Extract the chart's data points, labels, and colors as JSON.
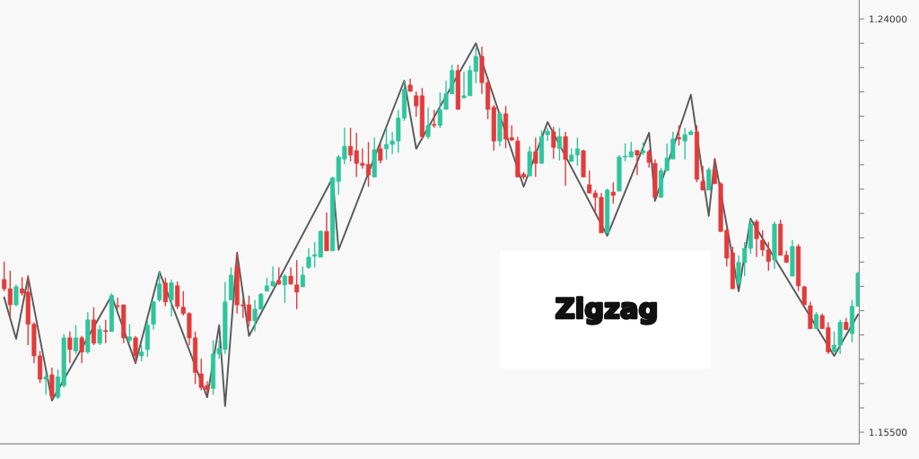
{
  "chart_data": {
    "type": "candlestick",
    "categories": [
      null,
      null,
      null,
      null,
      null,
      null,
      null,
      null,
      null,
      null,
      null,
      null,
      null,
      null,
      null,
      null,
      null,
      null,
      null,
      null,
      null,
      null,
      null,
      null,
      null,
      null,
      null,
      null,
      null,
      null,
      null,
      null,
      null,
      null,
      null,
      null,
      null,
      null,
      null,
      null,
      null,
      null,
      null,
      null,
      null,
      null,
      null,
      null,
      null,
      null,
      null,
      null,
      null,
      null,
      null,
      null,
      null,
      null,
      null,
      null,
      null,
      null,
      null,
      null,
      null,
      null,
      null,
      null,
      null,
      null,
      null,
      null,
      null,
      null,
      null,
      null,
      null,
      null,
      null,
      null,
      null,
      null,
      null,
      null,
      null,
      null,
      null,
      null,
      null,
      null,
      null,
      null,
      null,
      null,
      null,
      null,
      null,
      null,
      null,
      null,
      null,
      null,
      null,
      null,
      null,
      null,
      null,
      null,
      null,
      null,
      null,
      null,
      null,
      null,
      null,
      null,
      null,
      null,
      null,
      null,
      null,
      null,
      null,
      null,
      null,
      null,
      null,
      null,
      null,
      null,
      null,
      null,
      null,
      null,
      null,
      null,
      null,
      null,
      null,
      null,
      null,
      null,
      null,
      null
    ],
    "ohlc": [
      [
        1.1864,
        1.1901,
        1.184,
        1.1845
      ],
      [
        1.1845,
        1.1882,
        1.1788,
        1.1812
      ],
      [
        1.1812,
        1.1853,
        1.1809,
        1.1849
      ],
      [
        1.1845,
        1.1869,
        1.1831,
        1.1836
      ],
      [
        1.1838,
        1.1873,
        1.1729,
        1.1772
      ],
      [
        1.1772,
        1.1776,
        1.1692,
        1.1707
      ],
      [
        1.1707,
        1.1717,
        1.1651,
        1.1659
      ],
      [
        1.1659,
        1.1673,
        1.1627,
        1.1664
      ],
      [
        1.1668,
        1.1683,
        1.1618,
        1.1624
      ],
      [
        1.1622,
        1.1679,
        1.1618,
        1.1664
      ],
      [
        1.1646,
        1.1752,
        1.1642,
        1.1744
      ],
      [
        1.1744,
        1.1757,
        1.1692,
        1.172
      ],
      [
        1.1717,
        1.177,
        1.1711,
        1.1744
      ],
      [
        1.1744,
        1.1748,
        1.1692,
        1.1715
      ],
      [
        1.1715,
        1.1797,
        1.1711,
        1.1781
      ],
      [
        1.1781,
        1.1807,
        1.1729,
        1.1733
      ],
      [
        1.1733,
        1.177,
        1.1729,
        1.1761
      ],
      [
        1.1759,
        1.1781,
        1.1733,
        1.1757
      ],
      [
        1.1757,
        1.1836,
        1.1757,
        1.1831
      ],
      [
        1.181,
        1.1827,
        1.1803,
        1.1809
      ],
      [
        1.1812,
        1.1812,
        1.1733,
        1.1744
      ],
      [
        1.1739,
        1.1772,
        1.1735,
        1.1746
      ],
      [
        1.1744,
        1.1748,
        1.1692,
        1.1707
      ],
      [
        1.1707,
        1.1729,
        1.1696,
        1.1715
      ],
      [
        1.172,
        1.1781,
        1.1705,
        1.177
      ],
      [
        1.1772,
        1.182,
        1.1761,
        1.1818
      ],
      [
        1.1822,
        1.188,
        1.1818,
        1.1855
      ],
      [
        1.1857,
        1.1868,
        1.1809,
        1.1818
      ],
      [
        1.1822,
        1.1864,
        1.1788,
        1.1857
      ],
      [
        1.1851,
        1.186,
        1.1803,
        1.1809
      ],
      [
        1.1807,
        1.184,
        1.179,
        1.1794
      ],
      [
        1.1794,
        1.1797,
        1.1729,
        1.1744
      ],
      [
        1.1744,
        1.1757,
        1.1649,
        1.1673
      ],
      [
        1.167,
        1.1701,
        1.1636,
        1.1642
      ],
      [
        1.1646,
        1.1655,
        1.1627,
        1.1638
      ],
      [
        1.164,
        1.1739,
        1.1627,
        1.1711
      ],
      [
        1.1711,
        1.1739,
        1.1701,
        1.1722
      ],
      [
        1.172,
        1.1859,
        1.1711,
        1.1818
      ],
      [
        1.1822,
        1.1889,
        1.1822,
        1.1873
      ],
      [
        1.1891,
        1.1919,
        1.1794,
        1.1812
      ],
      [
        1.1812,
        1.1825,
        1.1785,
        1.181
      ],
      [
        1.1812,
        1.1831,
        1.1767,
        1.1779
      ],
      [
        1.1779,
        1.1822,
        1.1757,
        1.1803
      ],
      [
        1.1803,
        1.1836,
        1.1803,
        1.1834
      ],
      [
        1.184,
        1.1868,
        1.184,
        1.1851
      ],
      [
        1.1851,
        1.1891,
        1.1849,
        1.186
      ],
      [
        1.1862,
        1.1889,
        1.1853,
        1.1855
      ],
      [
        1.1853,
        1.1875,
        1.1816,
        1.1871
      ],
      [
        1.1871,
        1.1889,
        1.1853,
        1.1855
      ],
      [
        1.1853,
        1.1904,
        1.1803,
        1.1838
      ],
      [
        1.1849,
        1.1891,
        1.1849,
        1.1873
      ],
      [
        1.1889,
        1.1928,
        1.1886,
        1.191
      ],
      [
        1.1912,
        1.1941,
        1.1889,
        1.1915
      ],
      [
        1.191,
        1.1965,
        1.191,
        1.1963
      ],
      [
        1.1963,
        1.2002,
        1.1923,
        1.1923
      ],
      [
        1.1923,
        1.2075,
        1.1923,
        1.2073
      ],
      [
        1.2066,
        1.212,
        1.2039,
        1.2116
      ],
      [
        1.2112,
        1.2176,
        1.2101,
        1.2138
      ],
      [
        1.2138,
        1.2176,
        1.2107,
        1.212
      ],
      [
        1.2129,
        1.2166,
        1.2075,
        1.2103
      ],
      [
        1.2103,
        1.2134,
        1.2092,
        1.2099
      ],
      [
        1.2101,
        1.2147,
        1.2055,
        1.2079
      ],
      [
        1.2075,
        1.2156,
        1.2075,
        1.2131
      ],
      [
        1.2133,
        1.2144,
        1.2103,
        1.2109
      ],
      [
        1.2133,
        1.2176,
        1.2111,
        1.2142
      ],
      [
        1.2142,
        1.2168,
        1.2122,
        1.2149
      ],
      [
        1.2149,
        1.2213,
        1.2125,
        1.2196
      ],
      [
        1.2196,
        1.2273,
        1.219,
        1.2255
      ],
      [
        1.2264,
        1.2277,
        1.2251,
        1.2251
      ],
      [
        1.2242,
        1.2251,
        1.2199,
        1.2221
      ],
      [
        1.2242,
        1.2258,
        1.2153,
        1.2158
      ],
      [
        1.2158,
        1.2218,
        1.2153,
        1.2181
      ],
      [
        1.2183,
        1.2213,
        1.2176,
        1.2181
      ],
      [
        1.2181,
        1.2249,
        1.2176,
        1.2213
      ],
      [
        1.2214,
        1.2273,
        1.2214,
        1.2246
      ],
      [
        1.2246,
        1.2306,
        1.2246,
        1.2294
      ],
      [
        1.2294,
        1.2306,
        1.2214,
        1.2214
      ],
      [
        1.2238,
        1.2292,
        1.2236,
        1.2242
      ],
      [
        1.2242,
        1.2304,
        1.2242,
        1.2294
      ],
      [
        1.2292,
        1.2341,
        1.2268,
        1.2323
      ],
      [
        1.2323,
        1.2343,
        1.2246,
        1.2269
      ],
      [
        1.2269,
        1.2279,
        1.2194,
        1.2214
      ],
      [
        1.2218,
        1.2223,
        1.2129,
        1.2149
      ],
      [
        1.2149,
        1.2209,
        1.2138,
        1.2205
      ],
      [
        1.2205,
        1.2221,
        1.2134,
        1.2153
      ],
      [
        1.2156,
        1.2181,
        1.2149,
        1.2151
      ],
      [
        1.2149,
        1.2158,
        1.2075,
        1.2075
      ],
      [
        1.2081,
        1.2085,
        1.207,
        1.2075
      ],
      [
        1.2077,
        1.2138,
        1.2077,
        1.2127
      ],
      [
        1.2127,
        1.2156,
        1.2075,
        1.2103
      ],
      [
        1.2103,
        1.2171,
        1.2103,
        1.2158
      ],
      [
        1.2162,
        1.2176,
        1.2149,
        1.2169
      ],
      [
        1.2168,
        1.2178,
        1.2112,
        1.2136
      ],
      [
        1.2134,
        1.2176,
        1.2109,
        1.2158
      ],
      [
        1.2158,
        1.2168,
        1.2057,
        1.2111
      ],
      [
        1.2107,
        1.2134,
        1.2107,
        1.212
      ],
      [
        1.212,
        1.2156,
        1.2098,
        1.2133
      ],
      [
        1.2129,
        1.2131,
        1.2075,
        1.2075
      ],
      [
        1.2059,
        1.2088,
        1.2042,
        1.2042
      ],
      [
        1.2042,
        1.2048,
        1.2002,
        1.2033
      ],
      [
        1.2033,
        1.2042,
        1.196,
        1.196
      ],
      [
        1.196,
        1.2051,
        1.196,
        1.2048
      ],
      [
        1.2044,
        1.2064,
        1.202,
        1.2037
      ],
      [
        1.2046,
        1.212,
        1.2046,
        1.2116
      ],
      [
        1.2116,
        1.2144,
        1.2107,
        1.2118
      ],
      [
        1.2116,
        1.2147,
        1.2116,
        1.2127
      ],
      [
        1.2129,
        1.2131,
        1.2079,
        1.212
      ],
      [
        1.2125,
        1.2147,
        1.212,
        1.2129
      ],
      [
        1.2127,
        1.2131,
        1.2094,
        1.2105
      ],
      [
        1.2103,
        1.2111,
        1.2033,
        1.2033
      ],
      [
        1.2033,
        1.2094,
        1.2033,
        1.2088
      ],
      [
        1.2088,
        1.2144,
        1.2088,
        1.2114
      ],
      [
        1.2112,
        1.2168,
        1.2112,
        1.2153
      ],
      [
        1.2156,
        1.2181,
        1.214,
        1.2153
      ],
      [
        1.2149,
        1.2176,
        1.2111,
        1.2162
      ],
      [
        1.2162,
        1.2171,
        1.2162,
        1.2168
      ],
      [
        1.2168,
        1.2181,
        1.2064,
        1.207
      ],
      [
        1.2066,
        1.2098,
        1.2048,
        1.2048
      ],
      [
        1.2048,
        1.2094,
        1.2048,
        1.209
      ],
      [
        1.209,
        1.2112,
        1.2061,
        1.2061
      ],
      [
        1.2061,
        1.2064,
        1.1963,
        1.1963
      ],
      [
        1.1965,
        1.1969,
        1.1891,
        1.1908
      ],
      [
        1.1919,
        1.1932,
        1.1845,
        1.1845
      ],
      [
        1.1855,
        1.1914,
        1.1855,
        1.1899
      ],
      [
        1.1899,
        1.1941,
        1.1871,
        1.1928
      ],
      [
        1.1928,
        1.1987,
        1.1917,
        1.1978
      ],
      [
        1.1983,
        1.1987,
        1.191,
        1.1948
      ],
      [
        1.1945,
        1.1965,
        1.1912,
        1.1925
      ],
      [
        1.1925,
        1.1941,
        1.1882,
        1.1901
      ],
      [
        1.1904,
        1.1983,
        1.1886,
        1.1978
      ],
      [
        1.1978,
        1.1987,
        1.1914,
        1.1914
      ],
      [
        1.1914,
        1.1923,
        1.1899,
        1.1899
      ],
      [
        1.1871,
        1.1945,
        1.1871,
        1.1932
      ],
      [
        1.1932,
        1.1937,
        1.184,
        1.1851
      ],
      [
        1.1849,
        1.1851,
        1.1812,
        1.1812
      ],
      [
        1.181,
        1.1818,
        1.1763,
        1.1763
      ],
      [
        1.1763,
        1.1797,
        1.1763,
        1.1792
      ],
      [
        1.179,
        1.1794,
        1.1763,
        1.1763
      ],
      [
        1.1765,
        1.1776,
        1.1711,
        1.1715
      ],
      [
        1.1715,
        1.1757,
        1.1715,
        1.1729
      ],
      [
        1.1729,
        1.1781,
        1.1711,
        1.1776
      ],
      [
        1.1776,
        1.1785,
        1.1761,
        1.1761
      ],
      [
        1.1753,
        1.1822,
        1.1735,
        1.1809
      ],
      [
        1.1809,
        1.188,
        1.1809,
        1.1877
      ]
    ],
    "colors": [
      "#e23b3b",
      "#e23b3b",
      "#2fc59d",
      "#e23b3b",
      "#e23b3b",
      "#e23b3b",
      "#e23b3b",
      "#2fc59d",
      "#e23b3b",
      "#2fc59d",
      "#2fc59d",
      "#e23b3b",
      "#2fc59d",
      "#e23b3b",
      "#2fc59d",
      "#e23b3b",
      "#2fc59d",
      "#e23b3b",
      "#2fc59d",
      "#e23b3b",
      "#e23b3b",
      "#2fc59d",
      "#e23b3b",
      "#2fc59d",
      "#2fc59d",
      "#2fc59d",
      "#2fc59d",
      "#e23b3b",
      "#2fc59d",
      "#e23b3b",
      "#e23b3b",
      "#e23b3b",
      "#e23b3b",
      "#e23b3b",
      "#e23b3b",
      "#2fc59d",
      "#2fc59d",
      "#2fc59d",
      "#2fc59d",
      "#e23b3b",
      "#e23b3b",
      "#e23b3b",
      "#2fc59d",
      "#2fc59d",
      "#2fc59d",
      "#2fc59d",
      "#e23b3b",
      "#2fc59d",
      "#e23b3b",
      "#e23b3b",
      "#2fc59d",
      "#2fc59d",
      "#2fc59d",
      "#2fc59d",
      "#e23b3b",
      "#2fc59d",
      "#2fc59d",
      "#2fc59d",
      "#e23b3b",
      "#e23b3b",
      "#e23b3b",
      "#e23b3b",
      "#2fc59d",
      "#e23b3b",
      "#2fc59d",
      "#2fc59d",
      "#2fc59d",
      "#2fc59d",
      "#e23b3b",
      "#e23b3b",
      "#e23b3b",
      "#2fc59d",
      "#e23b3b",
      "#2fc59d",
      "#2fc59d",
      "#2fc59d",
      "#e23b3b",
      "#2fc59d",
      "#2fc59d",
      "#2fc59d",
      "#e23b3b",
      "#e23b3b",
      "#e23b3b",
      "#2fc59d",
      "#e23b3b",
      "#e23b3b",
      "#e23b3b",
      "#e23b3b",
      "#2fc59d",
      "#e23b3b",
      "#2fc59d",
      "#2fc59d",
      "#e23b3b",
      "#2fc59d",
      "#e23b3b",
      "#2fc59d",
      "#2fc59d",
      "#e23b3b",
      "#e23b3b",
      "#e23b3b",
      "#e23b3b",
      "#2fc59d",
      "#e23b3b",
      "#2fc59d",
      "#2fc59d",
      "#2fc59d",
      "#e23b3b",
      "#2fc59d",
      "#e23b3b",
      "#e23b3b",
      "#2fc59d",
      "#2fc59d",
      "#2fc59d",
      "#e23b3b",
      "#2fc59d",
      "#2fc59d",
      "#e23b3b",
      "#e23b3b",
      "#2fc59d",
      "#e23b3b",
      "#e23b3b",
      "#e23b3b",
      "#e23b3b",
      "#2fc59d",
      "#2fc59d",
      "#2fc59d",
      "#e23b3b",
      "#e23b3b",
      "#e23b3b",
      "#2fc59d",
      "#e23b3b",
      "#e23b3b",
      "#2fc59d",
      "#e23b3b",
      "#e23b3b",
      "#e23b3b",
      "#2fc59d",
      "#e23b3b",
      "#e23b3b",
      "#2fc59d",
      "#2fc59d",
      "#e23b3b",
      "#2fc59d",
      "#2fc59d"
    ],
    "series": [
      {
        "type": "line",
        "color": "#5a5a5a",
        "values": [
          1.1827,
          null,
          1.1742,
          null,
          1.1869,
          null,
          null,
          null,
          1.1615,
          null,
          null,
          null,
          null,
          null,
          null,
          null,
          null,
          null,
          1.1831,
          null,
          null,
          null,
          1.1692,
          null,
          null,
          null,
          1.188,
          null,
          null,
          null,
          null,
          null,
          null,
          null,
          1.1622,
          null,
          1.177,
          1.1604,
          null,
          1.1919,
          null,
          1.1748,
          null,
          null,
          null,
          null,
          null,
          null,
          null,
          null,
          null,
          null,
          null,
          null,
          null,
          1.2073,
          1.1925,
          null,
          null,
          null,
          null,
          null,
          null,
          null,
          null,
          null,
          null,
          1.2273,
          null,
          1.2133,
          null,
          null,
          null,
          null,
          null,
          null,
          null,
          null,
          null,
          1.235,
          null,
          null,
          null,
          null,
          null,
          null,
          null,
          1.2055,
          null,
          null,
          null,
          1.2188,
          null,
          null,
          null,
          null,
          null,
          null,
          null,
          null,
          null,
          1.1954,
          null,
          null,
          null,
          null,
          null,
          null,
          1.2166,
          1.2026,
          null,
          null,
          null,
          null,
          null,
          1.2244,
          null,
          null,
          1.1995,
          1.2112,
          null,
          null,
          null,
          1.184,
          null,
          1.1989,
          null,
          null,
          null,
          null,
          null,
          null,
          null,
          null,
          null,
          null,
          null,
          null,
          null,
          1.1707,
          null,
          null,
          null,
          1.1792
        ]
      }
    ],
    "ylim": [
      1.1526,
      1.2439
    ],
    "yticks": [
      {
        "value": 1.155,
        "label": "1.15500"
      },
      {
        "value": 1.16,
        "label": null
      },
      {
        "value": 1.165,
        "label": null
      },
      {
        "value": 1.17,
        "label": null
      },
      {
        "value": 1.175,
        "label": null
      },
      {
        "value": 1.18,
        "label": null
      },
      {
        "value": 1.185,
        "label": null
      },
      {
        "value": 1.19,
        "label": null
      },
      {
        "value": 1.195,
        "label": null
      },
      {
        "value": 1.2,
        "label": null
      },
      {
        "value": 1.205,
        "label": null
      },
      {
        "value": 1.21,
        "label": null
      },
      {
        "value": 1.215,
        "label": null
      },
      {
        "value": 1.22,
        "label": null
      },
      {
        "value": 1.225,
        "label": null
      },
      {
        "value": 1.23,
        "label": null
      },
      {
        "value": 1.235,
        "label": null
      },
      {
        "value": 1.24,
        "label": "1.24000"
      }
    ],
    "annotations": [
      "Zigzag"
    ],
    "tick_labels": "y",
    "grid": false,
    "legend": false
  }
}
